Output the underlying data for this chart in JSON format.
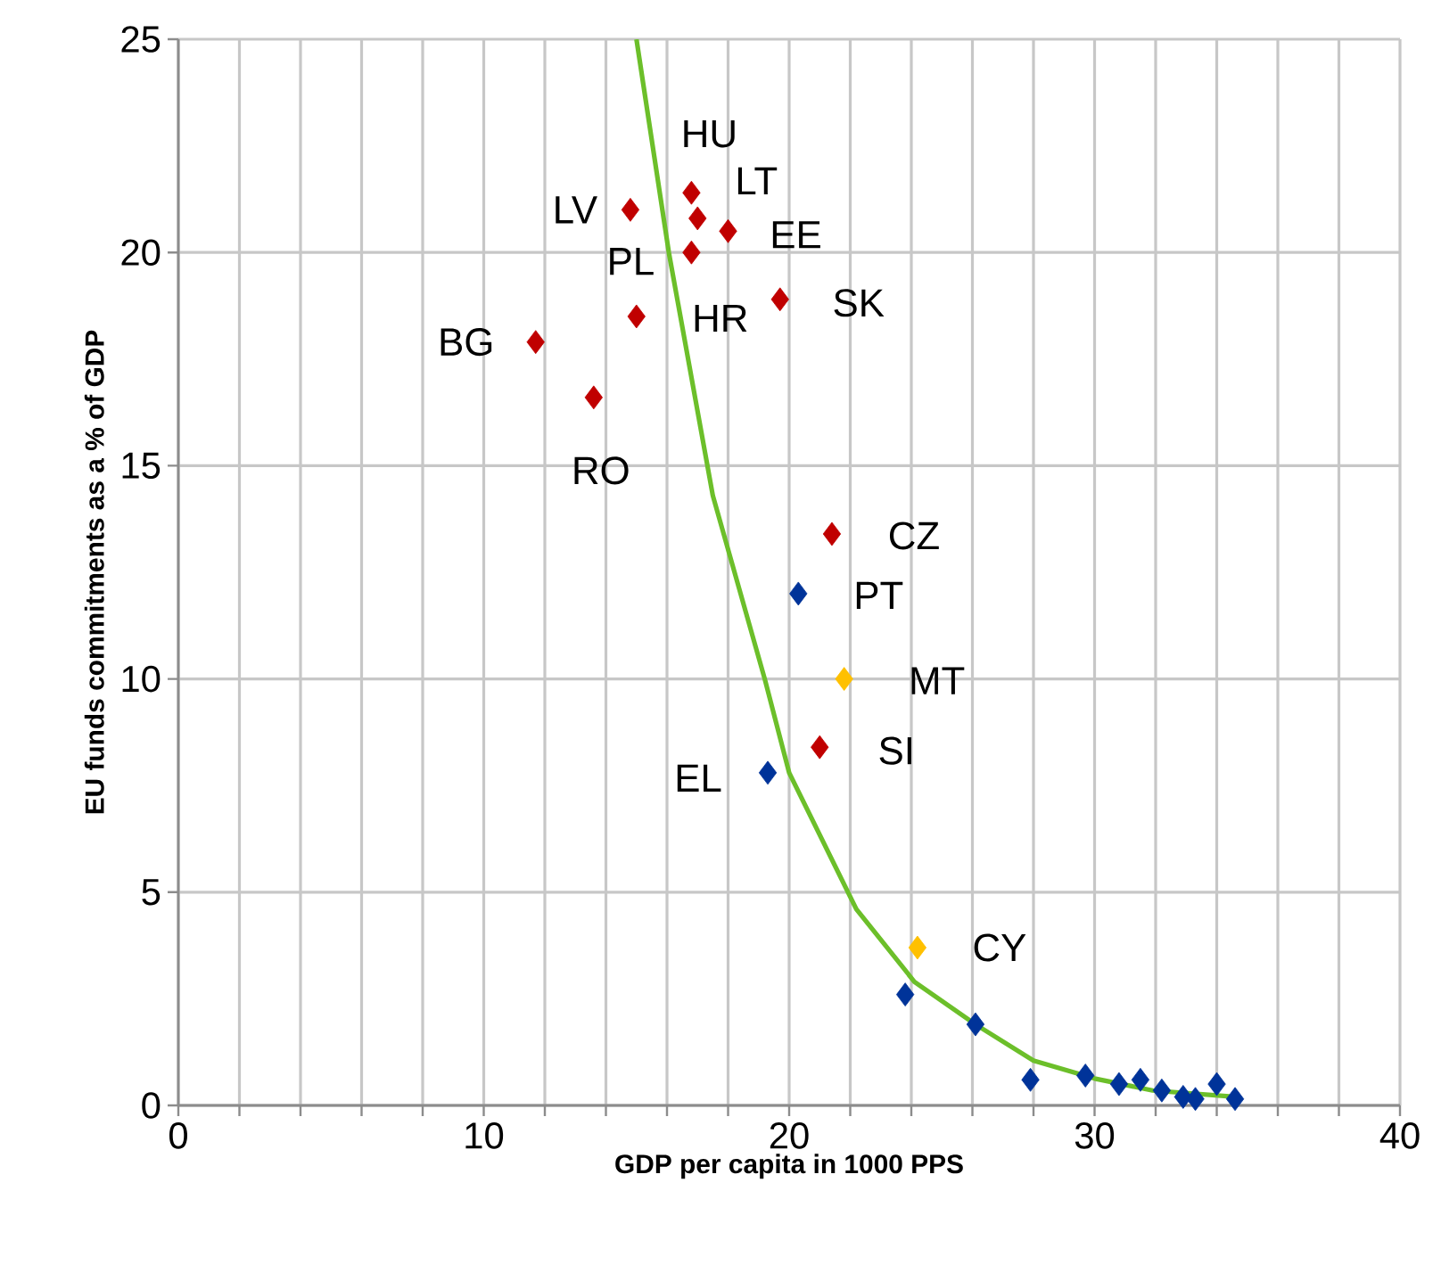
{
  "chart_data": {
    "type": "scatter",
    "xlabel": "GDP per capita in 1000 PPS",
    "ylabel": "EU funds commitments as a % of GDP",
    "xlim": [
      0,
      40
    ],
    "ylim": [
      0,
      25
    ],
    "xticks": [
      0,
      {
        "value": 2,
        "label": null
      },
      {
        "value": 4,
        "label": null
      },
      {
        "value": 6,
        "label": null
      },
      {
        "value": 8,
        "label": null
      },
      10,
      {
        "value": 12,
        "label": null
      },
      {
        "value": 14,
        "label": null
      },
      {
        "value": 16,
        "label": null
      },
      {
        "value": 18,
        "label": null
      },
      20,
      {
        "value": 22,
        "label": null
      },
      {
        "value": 24,
        "label": null
      },
      {
        "value": 26,
        "label": null
      },
      {
        "value": 28,
        "label": null
      },
      30,
      {
        "value": 32,
        "label": null
      },
      {
        "value": 34,
        "label": null
      },
      {
        "value": 36,
        "label": null
      },
      {
        "value": 38,
        "label": null
      },
      40
    ],
    "yticks": [
      0,
      5,
      10,
      15,
      20,
      25
    ],
    "grid": true,
    "marker": "diamond",
    "series": [
      {
        "color": "#c00000",
        "x": [
          16.8,
          17.0,
          14.8,
          18.0,
          16.8,
          19.7,
          15.0,
          11.7,
          13.6,
          21.4,
          21.0
        ],
        "values": [
          21.4,
          20.8,
          21.0,
          20.5,
          20.0,
          18.9,
          18.5,
          17.9,
          16.6,
          13.4,
          8.4
        ]
      },
      {
        "color": "#003399",
        "x": [
          20.3,
          19.3,
          23.8,
          26.1,
          27.9,
          29.7,
          30.8,
          31.5,
          32.2,
          32.9,
          33.3,
          34.0,
          34.6
        ],
        "values": [
          12.0,
          7.8,
          2.6,
          1.9,
          0.6,
          0.7,
          0.5,
          0.6,
          0.35,
          0.2,
          0.15,
          0.5,
          0.15
        ]
      },
      {
        "color": "#ffc000",
        "x": [
          21.8,
          24.2
        ],
        "values": [
          10.0,
          3.7
        ]
      },
      {
        "type": "line",
        "color": "#6cbf2a",
        "marker": "none",
        "line_style": "solid",
        "x": [
          15.0,
          16.06,
          17.5,
          19.2,
          20.0,
          22.2,
          24.1,
          26.1,
          28.0,
          30.0,
          31.9,
          34.6
        ],
        "values": [
          25,
          20,
          14.3,
          10,
          7.8,
          4.6,
          2.9,
          1.9,
          1.05,
          0.63,
          0.35,
          0.2
        ]
      }
    ],
    "annotations": [
      {
        "text": "HU",
        "x": 16.8,
        "y": 21.4
      },
      {
        "text": "LT",
        "x": 17.0,
        "y": 20.8
      },
      {
        "text": "LV",
        "x": 14.8,
        "y": 21.0
      },
      {
        "text": "EE",
        "x": 18.0,
        "y": 20.5
      },
      {
        "text": "PL",
        "x": 16.8,
        "y": 20.0
      },
      {
        "text": "SK",
        "x": 19.7,
        "y": 18.9
      },
      {
        "text": "HR",
        "x": 15.0,
        "y": 18.5
      },
      {
        "text": "BG",
        "x": 11.7,
        "y": 17.9
      },
      {
        "text": "RO",
        "x": 13.6,
        "y": 16.6
      },
      {
        "text": "CZ",
        "x": 21.4,
        "y": 13.4
      },
      {
        "text": "PT",
        "x": 20.3,
        "y": 12.0
      },
      {
        "text": "MT",
        "x": 21.8,
        "y": 10.0
      },
      {
        "text": "SI",
        "x": 21.0,
        "y": 8.4
      },
      {
        "text": "EL",
        "x": 19.3,
        "y": 7.8
      },
      {
        "text": "CY",
        "x": 24.2,
        "y": 3.7
      }
    ]
  }
}
